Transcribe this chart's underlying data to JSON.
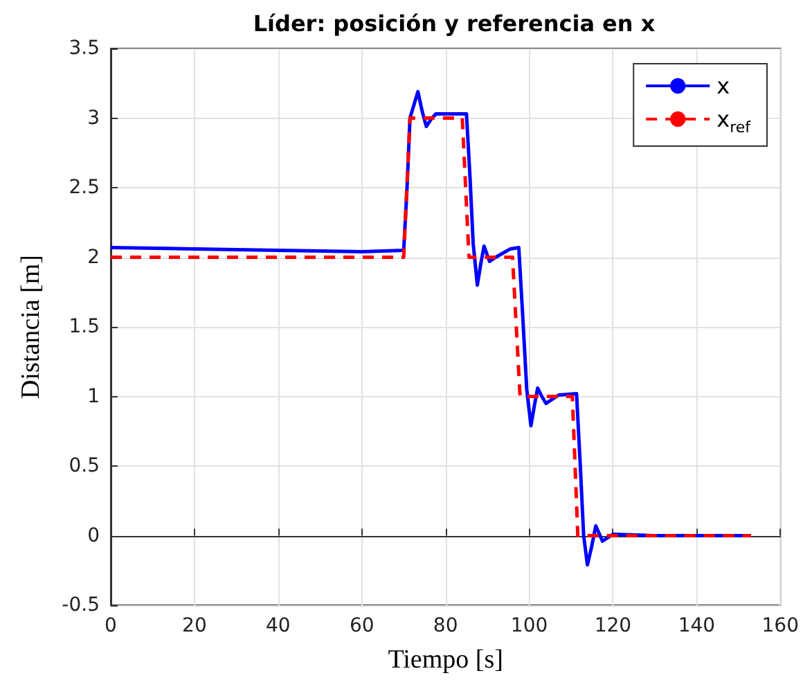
{
  "chart_data": {
    "type": "line",
    "title": "Líder: posición y referencia en x",
    "xlabel": "Tiempo [s]",
    "ylabel": "Distancia [m]",
    "xlim": [
      0,
      160
    ],
    "xticks": [
      0,
      20,
      40,
      60,
      80,
      100,
      120,
      140,
      160
    ],
    "ylim": [
      -0.5,
      3.5
    ],
    "yticks": [
      -0.5,
      0,
      0.5,
      1,
      1.5,
      2,
      2.5,
      3,
      3.5
    ],
    "grid": true,
    "legend": "top right",
    "marker": "none",
    "series": [
      {
        "name": "x",
        "color": "#0000ff",
        "line_style": "solid",
        "x": [
          0,
          20,
          40,
          60,
          70,
          70.8,
          71.5,
          72.5,
          73.4,
          74.4,
          75.4,
          76.5,
          77.7,
          81,
          85,
          85.8,
          86.6,
          87.6,
          88.4,
          89.2,
          90.5,
          92,
          95.5,
          97.5,
          98.4,
          99.4,
          100.4,
          101.2,
          102,
          103,
          104,
          107,
          111.3,
          112.2,
          113,
          113.9,
          114.9,
          115.9,
          117.5,
          120,
          130,
          140,
          153
        ],
        "values": [
          2.07,
          2.06,
          2.05,
          2.04,
          2.05,
          2.5,
          3.0,
          3.1,
          3.19,
          3.05,
          2.94,
          2.99,
          3.03,
          3.03,
          3.03,
          2.6,
          2.1,
          1.8,
          1.95,
          2.08,
          1.97,
          2.0,
          2.06,
          2.07,
          1.6,
          1.05,
          0.79,
          0.93,
          1.06,
          1.0,
          0.95,
          1.01,
          1.02,
          0.5,
          0.0,
          -0.21,
          -0.08,
          0.07,
          -0.04,
          0.01,
          0,
          0,
          0
        ]
      },
      {
        "name": "x$_{ref}$",
        "color": "#ff0000",
        "line_style": "dashed",
        "x": [
          0,
          70,
          71.5,
          84,
          85.6,
          96,
          97.8,
          110.3,
          111.6,
          153
        ],
        "values": [
          2,
          2,
          3,
          3,
          2,
          2,
          1,
          1,
          0,
          0
        ]
      }
    ]
  }
}
